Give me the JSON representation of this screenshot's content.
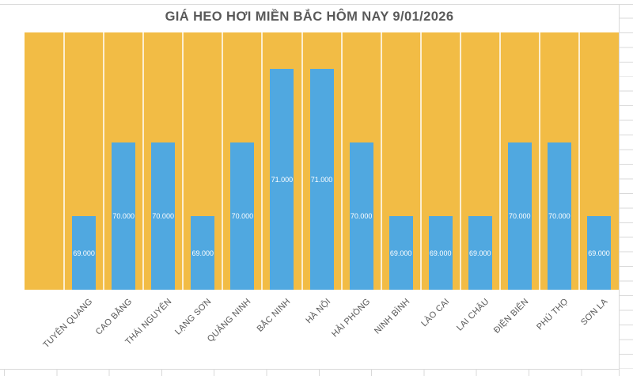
{
  "chart_data": {
    "type": "bar",
    "title": "GIÁ HEO HƠI MIỀN BẮC HÔM NAY 9/01/2026",
    "categories": [
      "TUYÊN QUANG",
      "CAO BẰNG",
      "THÁI NGUYÊN",
      "LẠNG SƠN",
      "QUẢNG NINH",
      "BẮC NINH",
      "HÀ NỘI",
      "HẢI PHÒNG",
      "NINH BÌNH",
      "LÀO CAI",
      "LAI CHÂU",
      "ĐIỆN BIÊN",
      "PHÚ THỌ",
      "SƠN LA"
    ],
    "values": [
      69000,
      70000,
      70000,
      69000,
      70000,
      71000,
      71000,
      70000,
      69000,
      69000,
      69000,
      70000,
      70000,
      69000
    ],
    "data_labels": [
      "69.000",
      "70.000",
      "70.000",
      "69.000",
      "70.000",
      "71.000",
      "71.000",
      "70.000",
      "69.000",
      "69.000",
      "69.000",
      "70.000",
      "70.000",
      "69.000"
    ],
    "ylim": [
      68000,
      71500
    ],
    "leading_empty_slots": 1,
    "xlabel": "",
    "ylabel": "",
    "legend": "none",
    "grid": "vertical-category-gridlines",
    "x_label_rotation_deg": -45
  },
  "colors": {
    "plot_bg": "#F2BC45",
    "bar_fill": "#50A8E0",
    "gridline": "rgba(255,255,255,0.75)",
    "title_text": "#595959",
    "axis_label_text": "#595959",
    "data_label_text": "#FFFFFF",
    "sheet_line": "#D9D9D9"
  }
}
